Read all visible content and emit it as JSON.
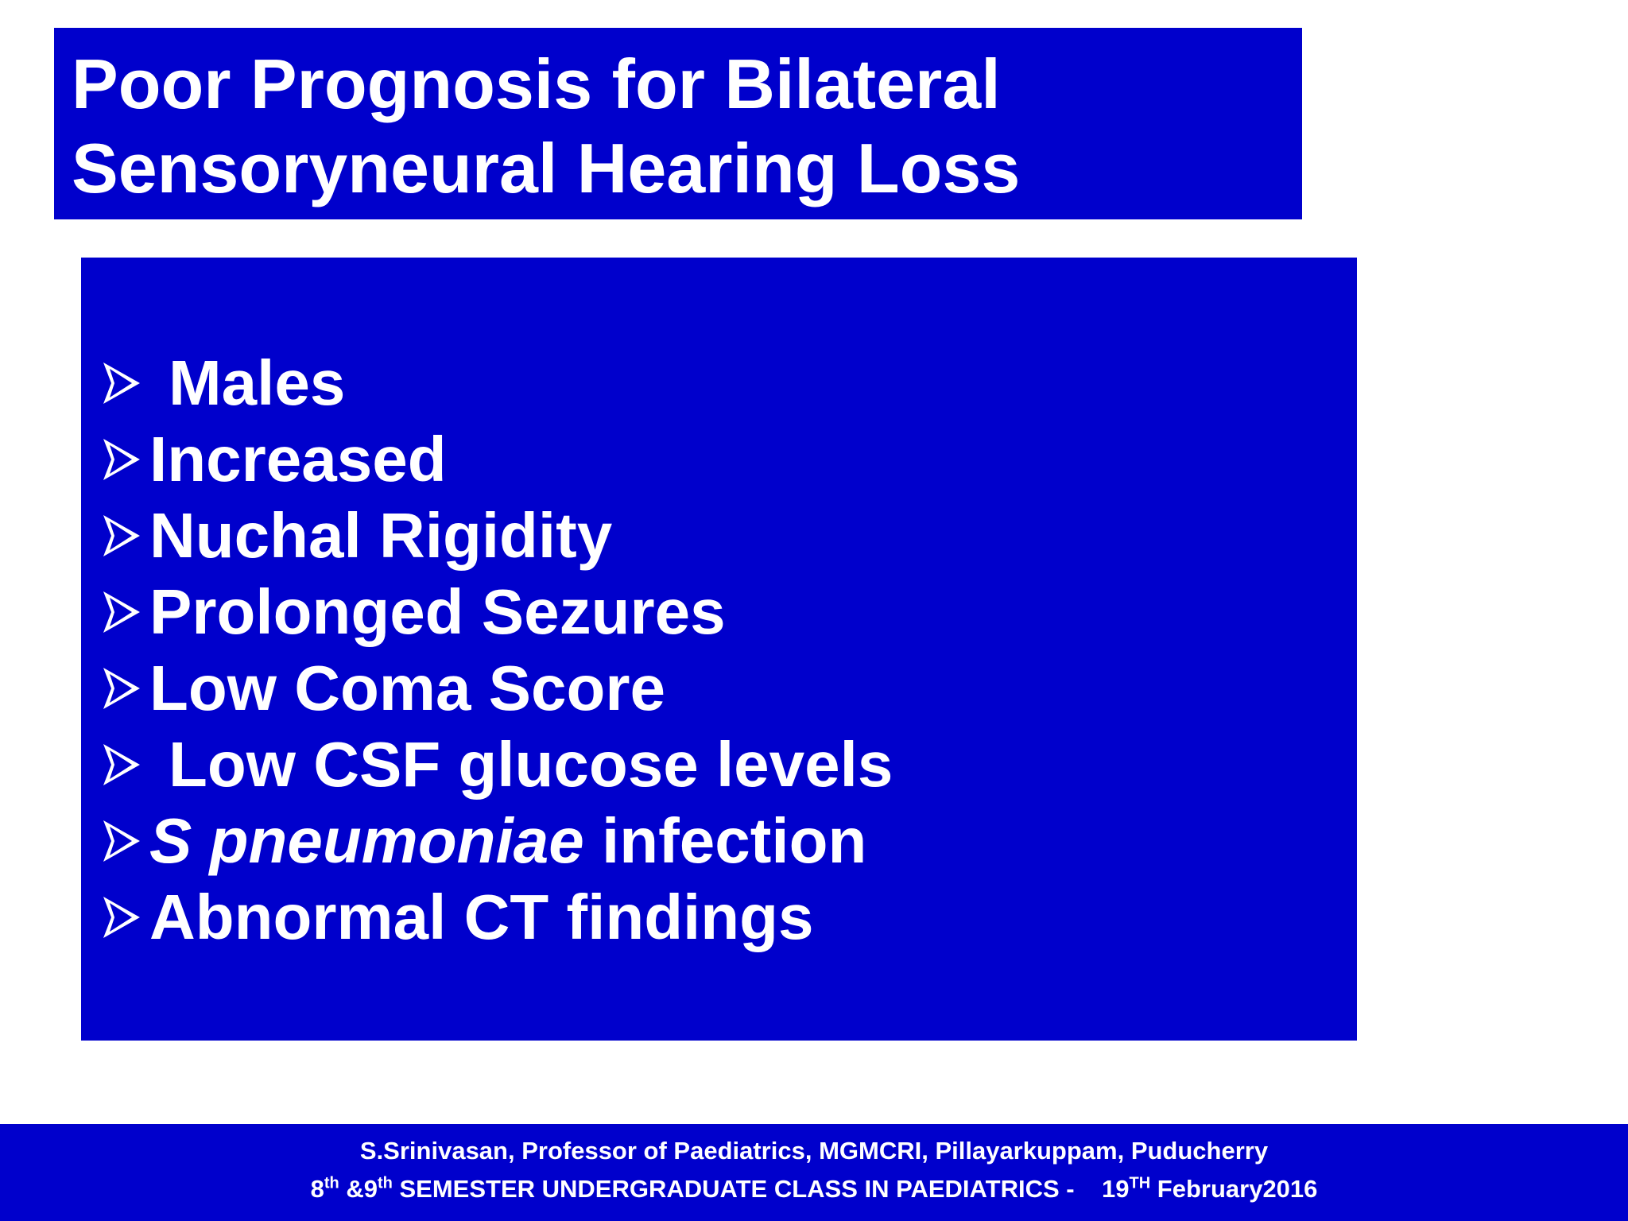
{
  "slide": {
    "title_line1": "Poor Prognosis for Bilateral",
    "title_line2": "Sensoryneural Hearing Loss",
    "bullet_icon": "arrow-bullet-icon",
    "bullets": [
      {
        "text": "Males"
      },
      {
        "text": "Increased"
      },
      {
        "text": "Nuchal Rigidity"
      },
      {
        "text": "Prolonged Sezures"
      },
      {
        "text": "Low Coma Score"
      },
      {
        "text": "Low CSF glucose levels"
      },
      {
        "italic_part": "S pneumoniae",
        "text": " infection"
      },
      {
        "text": "Abnormal CT findings"
      }
    ]
  },
  "footer": {
    "line1": "S.Srinivasan, Professor of Paediatrics, MGMCRI, Pillayarkuppam, Puducherry",
    "line2_a": "8",
    "line2_sup_a": "th",
    "line2_b": " &9",
    "line2_sup_b": "th",
    "line2_c": " SEMESTER UNDERGRADUATE CLASS IN PAEDIATRICS -    19",
    "line2_sup_c": "TH",
    "line2_d": " February2016"
  },
  "colors": {
    "box_background": "#0000cc",
    "text": "#ffffff",
    "page_background": "#ffffff"
  }
}
